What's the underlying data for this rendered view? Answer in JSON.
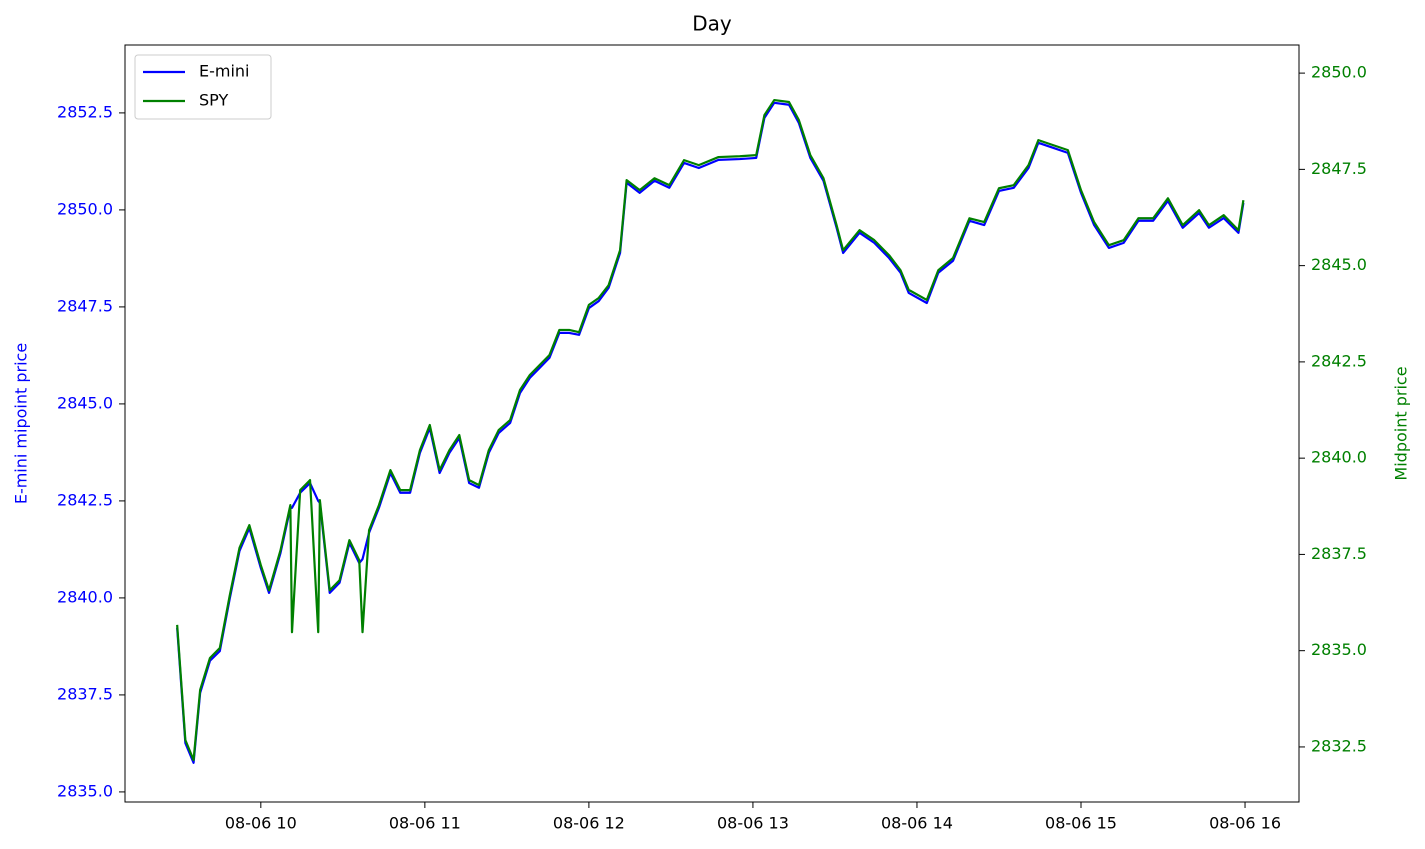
{
  "chart_data": {
    "type": "line",
    "title": "Day",
    "y_label": "E-mini mipoint price",
    "y2_label": "Midpoint price",
    "legend": "upper left",
    "x": [
      9.49,
      9.54,
      9.59,
      9.63,
      9.69,
      9.75,
      9.81,
      9.87,
      9.93,
      10.0,
      10.05,
      10.12,
      10.18,
      10.19,
      10.24,
      10.3,
      10.35,
      10.36,
      10.42,
      10.48,
      10.54,
      10.6,
      10.62,
      10.66,
      10.72,
      10.79,
      10.85,
      10.91,
      10.97,
      11.03,
      11.09,
      11.15,
      11.21,
      11.27,
      11.33,
      11.39,
      11.45,
      11.52,
      11.58,
      11.64,
      11.7,
      11.76,
      11.82,
      11.88,
      11.94,
      12.0,
      12.06,
      12.12,
      12.19,
      12.23,
      12.31,
      12.4,
      12.49,
      12.58,
      12.67,
      12.79,
      12.92,
      13.02,
      13.07,
      13.13,
      13.22,
      13.28,
      13.35,
      13.43,
      13.51,
      13.55,
      13.65,
      13.74,
      13.83,
      13.9,
      13.95,
      14.06,
      14.13,
      14.22,
      14.32,
      14.41,
      14.5,
      14.59,
      14.68,
      14.74,
      14.83,
      14.92,
      15.0,
      15.08,
      15.17,
      15.26,
      15.35,
      15.44,
      15.53,
      15.62,
      15.72,
      15.78,
      15.87,
      15.96,
      15.99
    ],
    "series": [
      {
        "name": "E-mini",
        "color": "#0000ff",
        "axis": "y",
        "values": [
          2839.23,
          2836.26,
          2835.75,
          2837.55,
          2838.38,
          2838.63,
          2839.97,
          2841.21,
          2841.8,
          2840.77,
          2840.13,
          2841.16,
          2842.32,
          2842.32,
          2842.71,
          2842.96,
          2842.5,
          2842.45,
          2840.13,
          2840.39,
          2841.42,
          2840.9,
          2841.0,
          2841.68,
          2842.32,
          2843.22,
          2842.71,
          2842.71,
          2843.74,
          2844.38,
          2843.22,
          2843.74,
          2844.12,
          2842.96,
          2842.84,
          2843.74,
          2844.25,
          2844.51,
          2845.28,
          2845.67,
          2845.93,
          2846.19,
          2846.83,
          2846.83,
          2846.78,
          2847.47,
          2847.65,
          2847.99,
          2848.89,
          2850.7,
          2850.44,
          2850.75,
          2850.57,
          2851.21,
          2851.08,
          2851.29,
          2851.31,
          2851.34,
          2852.37,
          2852.76,
          2852.71,
          2852.24,
          2851.34,
          2850.75,
          2849.54,
          2848.89,
          2849.41,
          2849.15,
          2848.76,
          2848.38,
          2847.86,
          2847.6,
          2848.38,
          2848.69,
          2849.72,
          2849.61,
          2850.49,
          2850.57,
          2851.08,
          2851.73,
          2851.6,
          2851.47,
          2850.44,
          2849.61,
          2849.02,
          2849.15,
          2849.72,
          2849.72,
          2850.23,
          2849.54,
          2849.92,
          2849.54,
          2849.79,
          2849.41,
          2850.18
        ]
      },
      {
        "name": "SPY",
        "color": "#008000",
        "axis": "y2",
        "values": [
          2835.67,
          2832.68,
          2832.16,
          2833.98,
          2834.81,
          2835.07,
          2836.42,
          2837.67,
          2838.26,
          2837.22,
          2836.57,
          2837.61,
          2838.78,
          2835.48,
          2839.17,
          2839.43,
          2835.48,
          2838.91,
          2836.57,
          2836.83,
          2837.87,
          2837.35,
          2835.48,
          2838.13,
          2838.78,
          2839.69,
          2839.17,
          2839.17,
          2840.21,
          2840.86,
          2839.69,
          2840.21,
          2840.6,
          2839.43,
          2839.3,
          2840.21,
          2840.73,
          2840.99,
          2841.77,
          2842.16,
          2842.42,
          2842.68,
          2843.33,
          2843.33,
          2843.27,
          2843.98,
          2844.16,
          2844.49,
          2845.4,
          2847.22,
          2846.96,
          2847.27,
          2847.09,
          2847.74,
          2847.61,
          2847.82,
          2847.84,
          2847.87,
          2848.91,
          2849.3,
          2849.25,
          2848.78,
          2847.87,
          2847.27,
          2846.05,
          2845.4,
          2845.92,
          2845.66,
          2845.27,
          2844.88,
          2844.37,
          2844.11,
          2844.88,
          2845.2,
          2846.23,
          2846.13,
          2847.01,
          2847.09,
          2847.61,
          2848.26,
          2848.13,
          2848.0,
          2846.96,
          2846.13,
          2845.53,
          2845.66,
          2846.23,
          2846.23,
          2846.75,
          2846.05,
          2846.44,
          2846.05,
          2846.31,
          2845.92,
          2846.7
        ]
      }
    ],
    "xlim": [
      9.172,
      16.329
    ],
    "xticks": [
      {
        "value": 10,
        "label": "08-06 10"
      },
      {
        "value": 11,
        "label": "08-06 11"
      },
      {
        "value": 12,
        "label": "08-06 12"
      },
      {
        "value": 13,
        "label": "08-06 13"
      },
      {
        "value": 14,
        "label": "08-06 14"
      },
      {
        "value": 15,
        "label": "08-06 15"
      },
      {
        "value": 16,
        "label": "08-06 16"
      }
    ],
    "ylim": [
      2834.74,
      2854.25
    ],
    "yticks": [
      {
        "value": 2835,
        "label": "2835.0"
      },
      2837.5,
      {
        "value": 2840,
        "label": "2840.0"
      },
      2842.5,
      {
        "value": 2845,
        "label": "2845.0"
      },
      2847.5,
      {
        "value": 2850,
        "label": "2850.0"
      },
      2852.5
    ],
    "y2lim": [
      2831.07,
      2850.73
    ],
    "y2ticks": [
      2832.5,
      {
        "value": 2835,
        "label": "2835.0"
      },
      2837.5,
      {
        "value": 2840,
        "label": "2840.0"
      },
      2842.5,
      {
        "value": 2845,
        "label": "2845.0"
      },
      2847.5,
      {
        "value": 2850,
        "label": "2850.0"
      }
    ],
    "grid": false
  }
}
